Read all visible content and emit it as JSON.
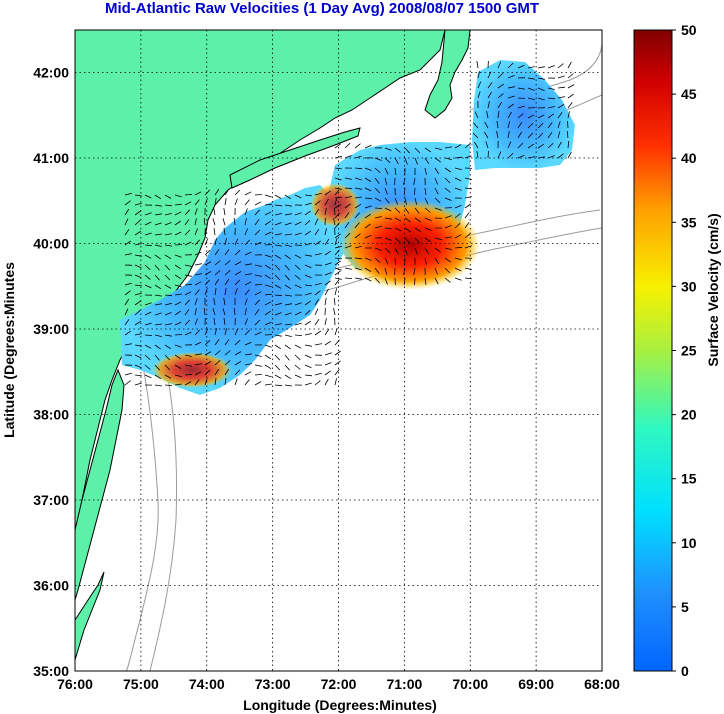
{
  "title": "Mid-Atlantic Raw Velocities (1 Day Avg) 2008/08/07 1500 GMT",
  "map": {
    "xlabel": "Longitude (Degrees:Minutes)",
    "ylabel": "Latitude (Degrees:Minutes",
    "lon_ticks": [
      "76:00",
      "75:00",
      "74:00",
      "73:00",
      "72:00",
      "71:00",
      "70:00",
      "69:00",
      "68:00"
    ],
    "lat_ticks": [
      "42:00",
      "41:00",
      "40:00",
      "39:00",
      "38:00",
      "37:00",
      "36:00",
      "35:00"
    ],
    "grid": true,
    "land_color": "#5cf0a8",
    "coast_color": "#000000",
    "bathymetry_color": "#9a9a9a"
  },
  "colorbar": {
    "label": "Surface Velocity (cm/s)",
    "min": 0,
    "max": 50,
    "ticks": [
      "50",
      "45",
      "40",
      "35",
      "30",
      "25",
      "20",
      "15",
      "10",
      "5",
      "0"
    ],
    "colormap": "jet"
  }
}
